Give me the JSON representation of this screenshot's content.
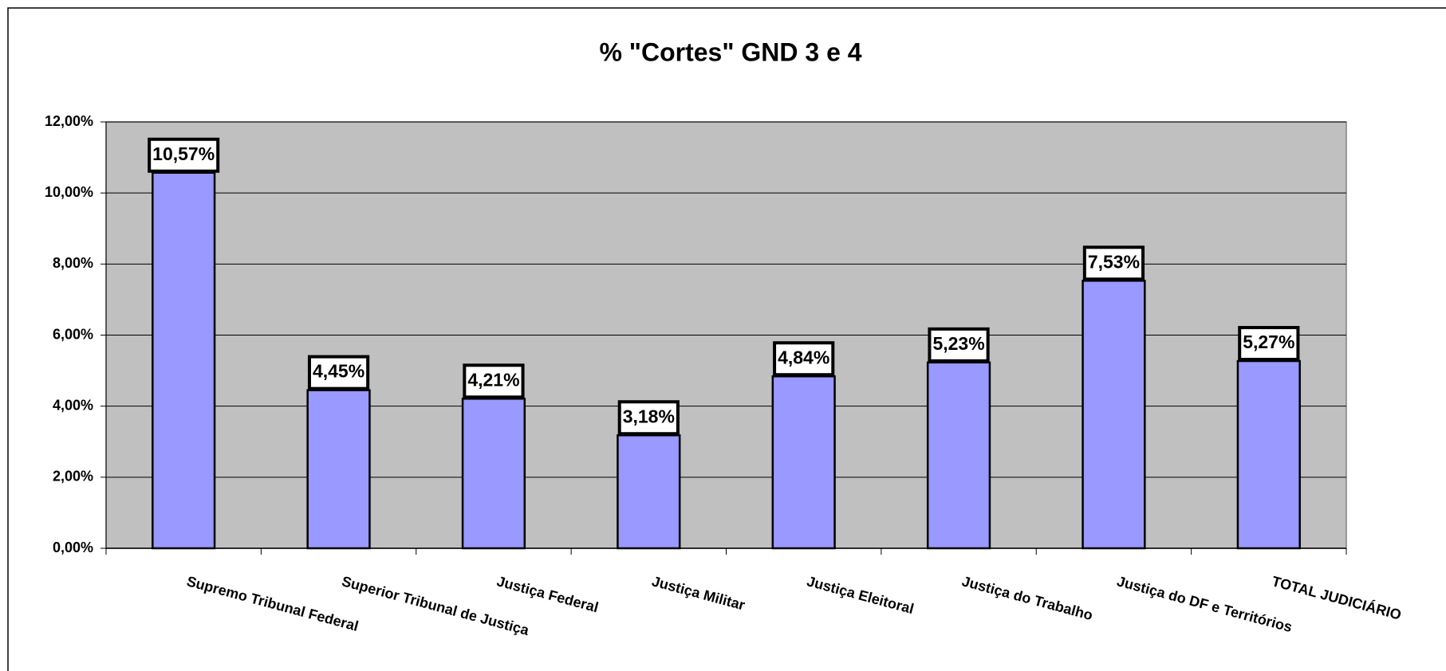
{
  "chart_data": {
    "type": "bar",
    "title": "% \"Cortes\" GND 3 e 4",
    "categories": [
      "Supremo Tribunal Federal",
      "Superior Tribunal de Justiça",
      "Justiça Federal",
      "Justiça Militar",
      "Justiça Eleitoral",
      "Justiça do Trabalho",
      "Justiça do DF e Territórios",
      "TOTAL JUDICIÁRIO"
    ],
    "values": [
      10.57,
      4.45,
      4.21,
      3.18,
      4.84,
      5.23,
      7.53,
      5.27
    ],
    "value_labels": [
      "10,57%",
      "4,45%",
      "4,21%",
      "3,18%",
      "4,84%",
      "5,23%",
      "7,53%",
      "5,27%"
    ],
    "color": "#9999ff",
    "ylim": [
      0,
      12
    ],
    "yticks": [
      {
        "value": 0,
        "label": "0,00%"
      },
      {
        "value": 2,
        "label": "2,00%"
      },
      {
        "value": 4,
        "label": "4,00%"
      },
      {
        "value": 6,
        "label": "6,00%"
      },
      {
        "value": 8,
        "label": "8,00%"
      },
      {
        "value": 10,
        "label": "10,00%"
      },
      {
        "value": 12,
        "label": "12,00%"
      }
    ],
    "grid": true
  }
}
